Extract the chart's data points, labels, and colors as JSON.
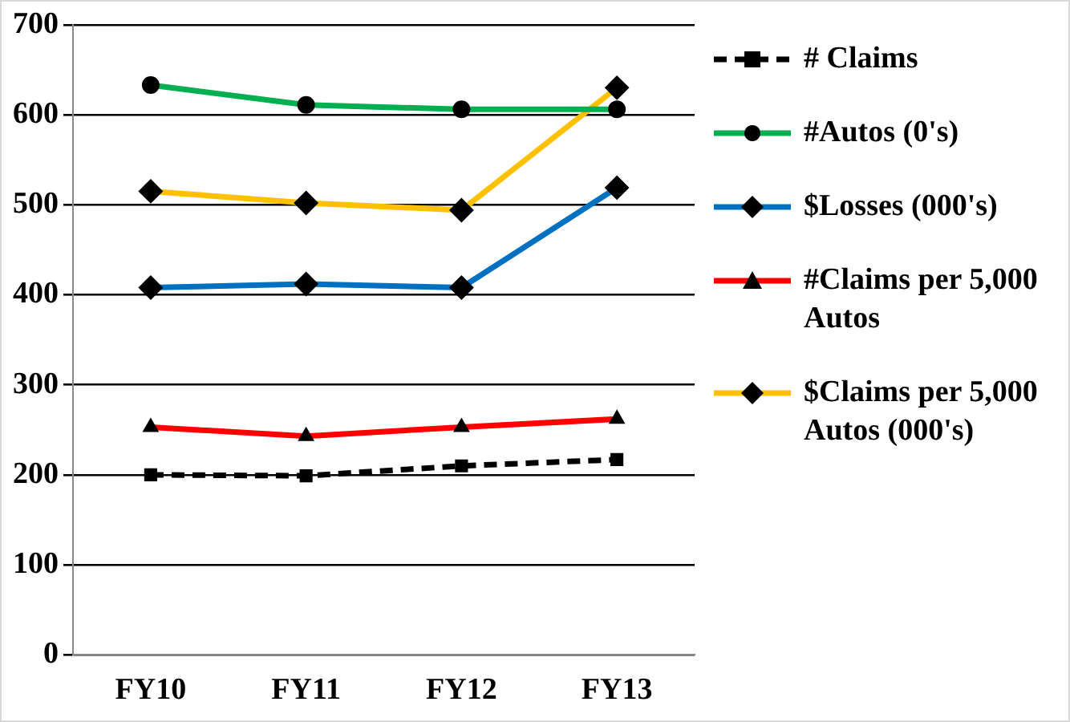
{
  "chart_data": {
    "type": "line",
    "categories": [
      "FY10",
      "FY11",
      "FY12",
      "FY13"
    ],
    "ylim": [
      0,
      700
    ],
    "yticks": [
      0,
      100,
      200,
      300,
      400,
      500,
      600,
      700
    ],
    "grid": "y",
    "legend": "right",
    "series": [
      {
        "name": "# Claims",
        "color": "#000000",
        "marker": "square",
        "line_style": "dashed",
        "values": [
          200,
          199,
          210,
          217
        ]
      },
      {
        "name": "#Autos (0's)",
        "color": "#00b050",
        "marker": "circle",
        "values": [
          633,
          611,
          606,
          606
        ]
      },
      {
        "name": "$Losses (000's)",
        "color": "#0070c0",
        "marker": "diamond",
        "values": [
          408,
          412,
          408,
          519
        ]
      },
      {
        "name": "#Claims per 5,000 Autos",
        "color": "#ff0000",
        "marker": "triangle",
        "values": [
          253,
          243,
          253,
          262
        ]
      },
      {
        "name": "$Claims per 5,000 Autos (000's)",
        "color": "#ffc000",
        "marker": "diamond",
        "values": [
          515,
          502,
          494,
          630
        ]
      }
    ]
  }
}
